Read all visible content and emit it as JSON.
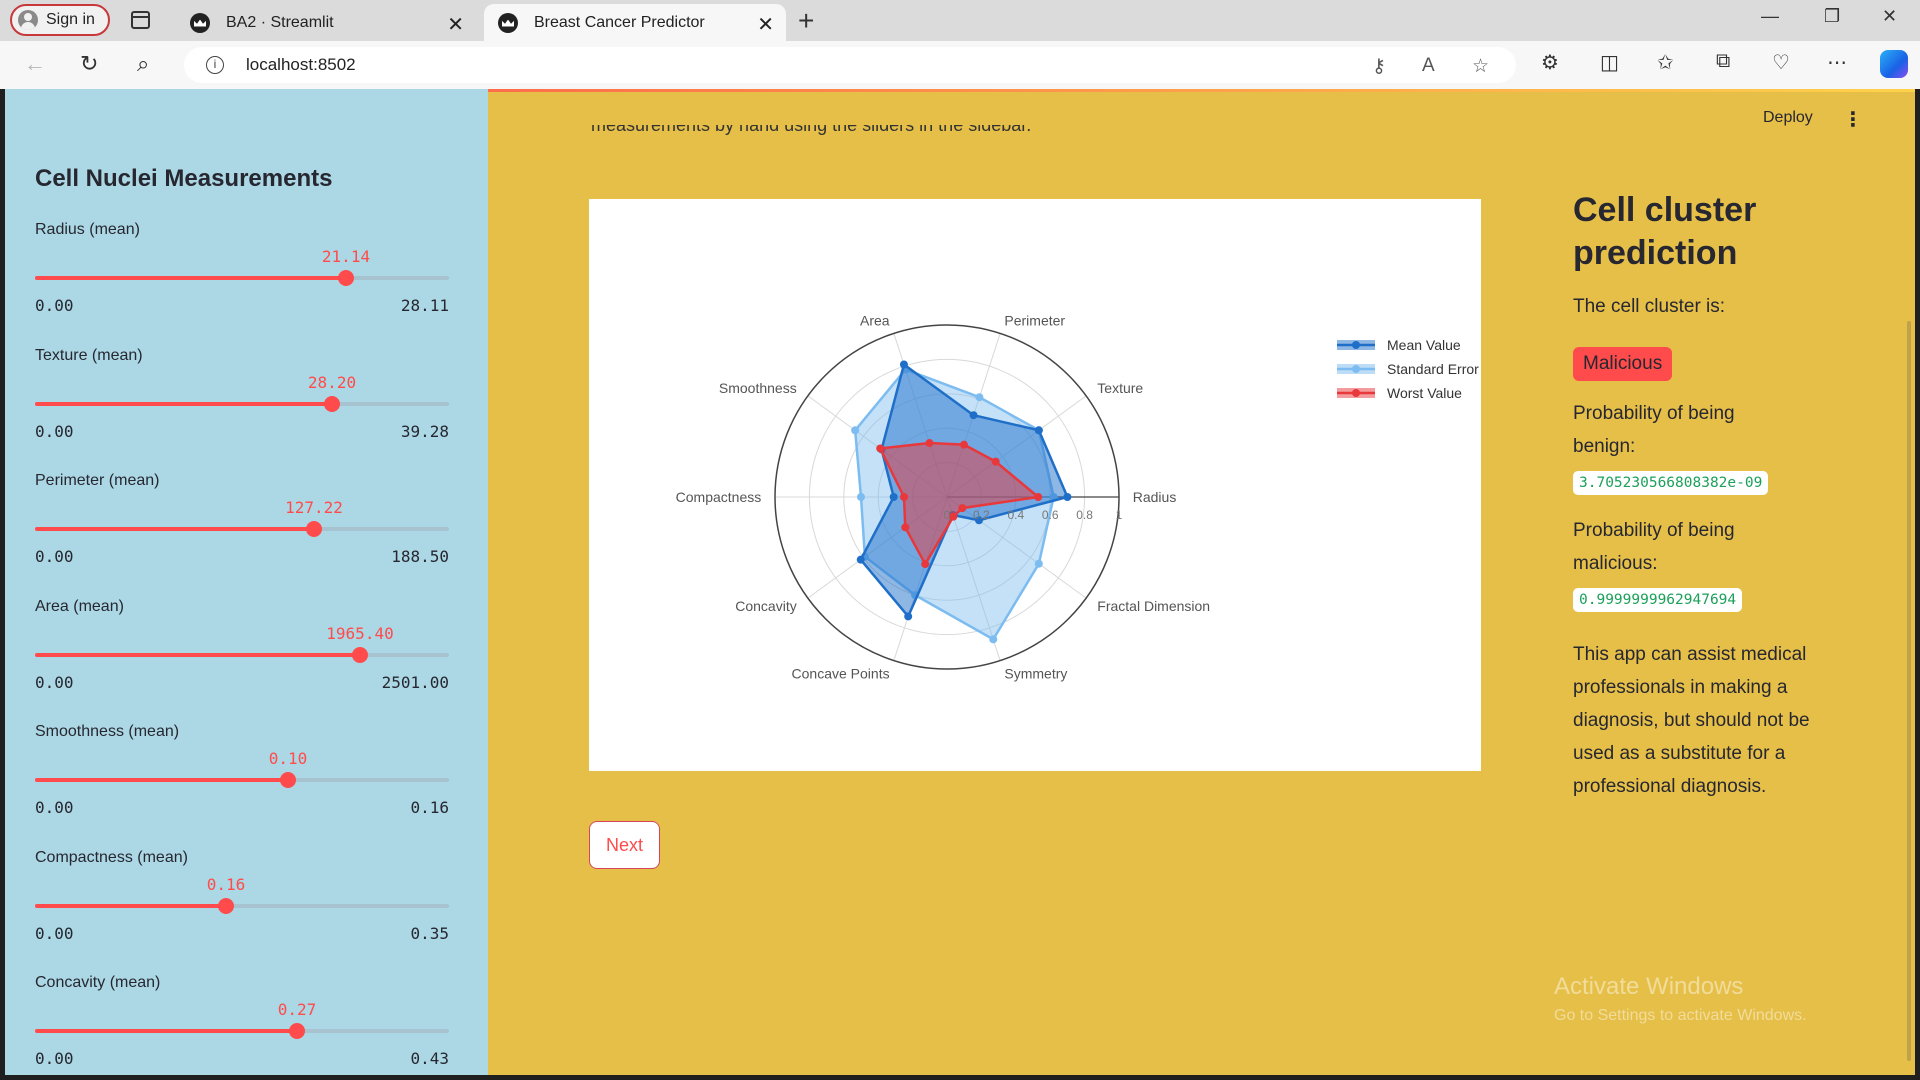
{
  "browser": {
    "signin_label": "Sign in",
    "tabs": [
      {
        "title": "BA2 · Streamlit"
      },
      {
        "title": "Breast Cancer Predictor"
      }
    ],
    "url": "localhost:8502"
  },
  "app": {
    "deploy_label": "Deploy",
    "partial_text": "measurements by hand using the sliders in the sidebar.",
    "next_label": "Next"
  },
  "sidebar": {
    "title": "Cell Nuclei Measurements",
    "sliders": [
      {
        "label": "Radius (mean)",
        "value": "21.14",
        "min": "0.00",
        "max": "28.11",
        "fraction": 0.752
      },
      {
        "label": "Texture (mean)",
        "value": "28.20",
        "min": "0.00",
        "max": "39.28",
        "fraction": 0.718
      },
      {
        "label": "Perimeter (mean)",
        "value": "127.22",
        "min": "0.00",
        "max": "188.50",
        "fraction": 0.675
      },
      {
        "label": "Area (mean)",
        "value": "1965.40",
        "min": "0.00",
        "max": "2501.00",
        "fraction": 0.786
      },
      {
        "label": "Smoothness (mean)",
        "value": "0.10",
        "min": "0.00",
        "max": "0.16",
        "fraction": 0.612
      },
      {
        "label": "Compactness (mean)",
        "value": "0.16",
        "min": "0.00",
        "max": "0.35",
        "fraction": 0.462
      },
      {
        "label": "Concavity (mean)",
        "value": "0.27",
        "min": "0.00",
        "max": "0.43",
        "fraction": 0.632
      }
    ]
  },
  "prediction": {
    "title": "Cell cluster prediction",
    "subtitle": "The cell cluster is:",
    "result": "Malicious",
    "benign_label": "Probability of being benign:",
    "benign_value": "3.705230566808382e-09",
    "malicious_label": "Probability of being malicious:",
    "malicious_value": "0.9999999962947694",
    "disclaimer": "This app can assist medical professionals in making a diagnosis, but should not be used as a substitute for a professional diagnosis."
  },
  "watermark": {
    "line1": "Activate Windows",
    "line2": "Go to Settings to activate Windows."
  },
  "chart_data": {
    "type": "radar",
    "categories": [
      "Radius",
      "Texture",
      "Perimeter",
      "Area",
      "Smoothness",
      "Compactness",
      "Concavity",
      "Concave Points",
      "Symmetry",
      "Fractal Dimension"
    ],
    "radial_ticks": [
      "0",
      "0.2",
      "0.4",
      "0.6",
      "0.8",
      "1"
    ],
    "rlim": [
      0,
      1
    ],
    "legend_position": "top-right",
    "series": [
      {
        "name": "Mean Value",
        "color": "#1f6fc9",
        "values": [
          0.7,
          0.66,
          0.5,
          0.81,
          0.47,
          0.31,
          0.62,
          0.73,
          0.11,
          0.23
        ]
      },
      {
        "name": "Standard Error",
        "color": "#7cbcf0",
        "values": [
          0.62,
          0.66,
          0.61,
          0.78,
          0.66,
          0.5,
          0.59,
          0.6,
          0.87,
          0.66
        ]
      },
      {
        "name": "Worst Value",
        "color": "#e8383b",
        "values": [
          0.53,
          0.35,
          0.32,
          0.33,
          0.48,
          0.25,
          0.3,
          0.41,
          0.12,
          0.11
        ]
      }
    ]
  }
}
